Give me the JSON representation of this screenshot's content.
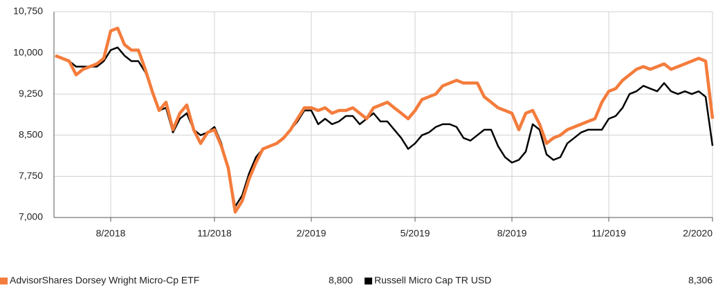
{
  "chart_data": {
    "type": "line",
    "categories": [
      null,
      null,
      null,
      null,
      null,
      null,
      null,
      null,
      "8/2018",
      null,
      null,
      null,
      null,
      null,
      null,
      null,
      null,
      null,
      null,
      null,
      null,
      null,
      null,
      "11/2018",
      null,
      null,
      null,
      null,
      null,
      null,
      null,
      null,
      null,
      null,
      null,
      null,
      null,
      "2/2019",
      null,
      null,
      null,
      null,
      null,
      null,
      null,
      null,
      null,
      null,
      null,
      null,
      null,
      null,
      "5/2019",
      null,
      null,
      null,
      null,
      null,
      null,
      null,
      null,
      null,
      null,
      null,
      null,
      null,
      "8/2019",
      null,
      null,
      null,
      null,
      null,
      null,
      null,
      null,
      null,
      null,
      null,
      null,
      null,
      "11/2019",
      null,
      null,
      null,
      null,
      null,
      null,
      null,
      null,
      null,
      null,
      null,
      null,
      null,
      null,
      "2/2020"
    ],
    "series": [
      {
        "name": "AdvisorShares Dorsey Wright Micro-Cp ETF",
        "color": "#f47c3c",
        "last_value_label": "8,800",
        "values": [
          9950,
          9900,
          9850,
          9600,
          9700,
          9750,
          9800,
          9900,
          10400,
          10450,
          10150,
          10050,
          10050,
          9700,
          9300,
          8950,
          9100,
          8600,
          8900,
          9050,
          8600,
          8350,
          8550,
          8600,
          8300,
          7900,
          7100,
          7300,
          7700,
          8000,
          8250,
          8300,
          8350,
          8450,
          8600,
          8800,
          9000,
          9000,
          8950,
          9000,
          8900,
          8950,
          8950,
          9000,
          8900,
          8800,
          9000,
          9050,
          9100,
          9000,
          8900,
          8800,
          8950,
          9150,
          9200,
          9250,
          9400,
          9450,
          9500,
          9450,
          9450,
          9450,
          9200,
          9100,
          9000,
          8950,
          8900,
          8600,
          8900,
          8950,
          8700,
          8350,
          8450,
          8500,
          8600,
          8650,
          8700,
          8750,
          8800,
          9100,
          9300,
          9350,
          9500,
          9600,
          9700,
          9750,
          9700,
          9750,
          9800,
          9700,
          9750,
          9800,
          9850,
          9900,
          9850,
          8800
        ]
      },
      {
        "name": "Russell Micro Cap TR USD",
        "color": "#000000",
        "last_value_label": "8,306",
        "values": [
          9950,
          9900,
          9850,
          9750,
          9750,
          9750,
          9750,
          9850,
          10050,
          10100,
          9950,
          9850,
          9850,
          9650,
          9300,
          8950,
          9000,
          8550,
          8800,
          8900,
          8600,
          8500,
          8550,
          8650,
          8350,
          7900,
          7200,
          7400,
          7800,
          8100,
          8250,
          8300,
          8350,
          8450,
          8600,
          8750,
          8950,
          8950,
          8700,
          8800,
          8700,
          8750,
          8850,
          8850,
          8700,
          8800,
          8900,
          8750,
          8750,
          8600,
          8450,
          8250,
          8350,
          8500,
          8550,
          8650,
          8700,
          8700,
          8650,
          8450,
          8400,
          8500,
          8600,
          8600,
          8300,
          8100,
          8000,
          8050,
          8200,
          8700,
          8600,
          8150,
          8050,
          8100,
          8350,
          8450,
          8550,
          8600,
          8600,
          8600,
          8800,
          8850,
          9000,
          9250,
          9300,
          9400,
          9350,
          9300,
          9450,
          9300,
          9250,
          9300,
          9250,
          9300,
          9200,
          8306
        ]
      }
    ],
    "ylim": [
      7000,
      10750
    ],
    "yticks": [
      {
        "value": 7000,
        "label": "7,000"
      },
      {
        "value": 7750,
        "label": "7,750"
      },
      {
        "value": 8500,
        "label": "8,500"
      },
      {
        "value": 9250,
        "label": "9,250"
      },
      {
        "value": 10000,
        "label": "10,000"
      },
      {
        "value": 10750,
        "label": "10,750"
      }
    ],
    "grid": true
  }
}
